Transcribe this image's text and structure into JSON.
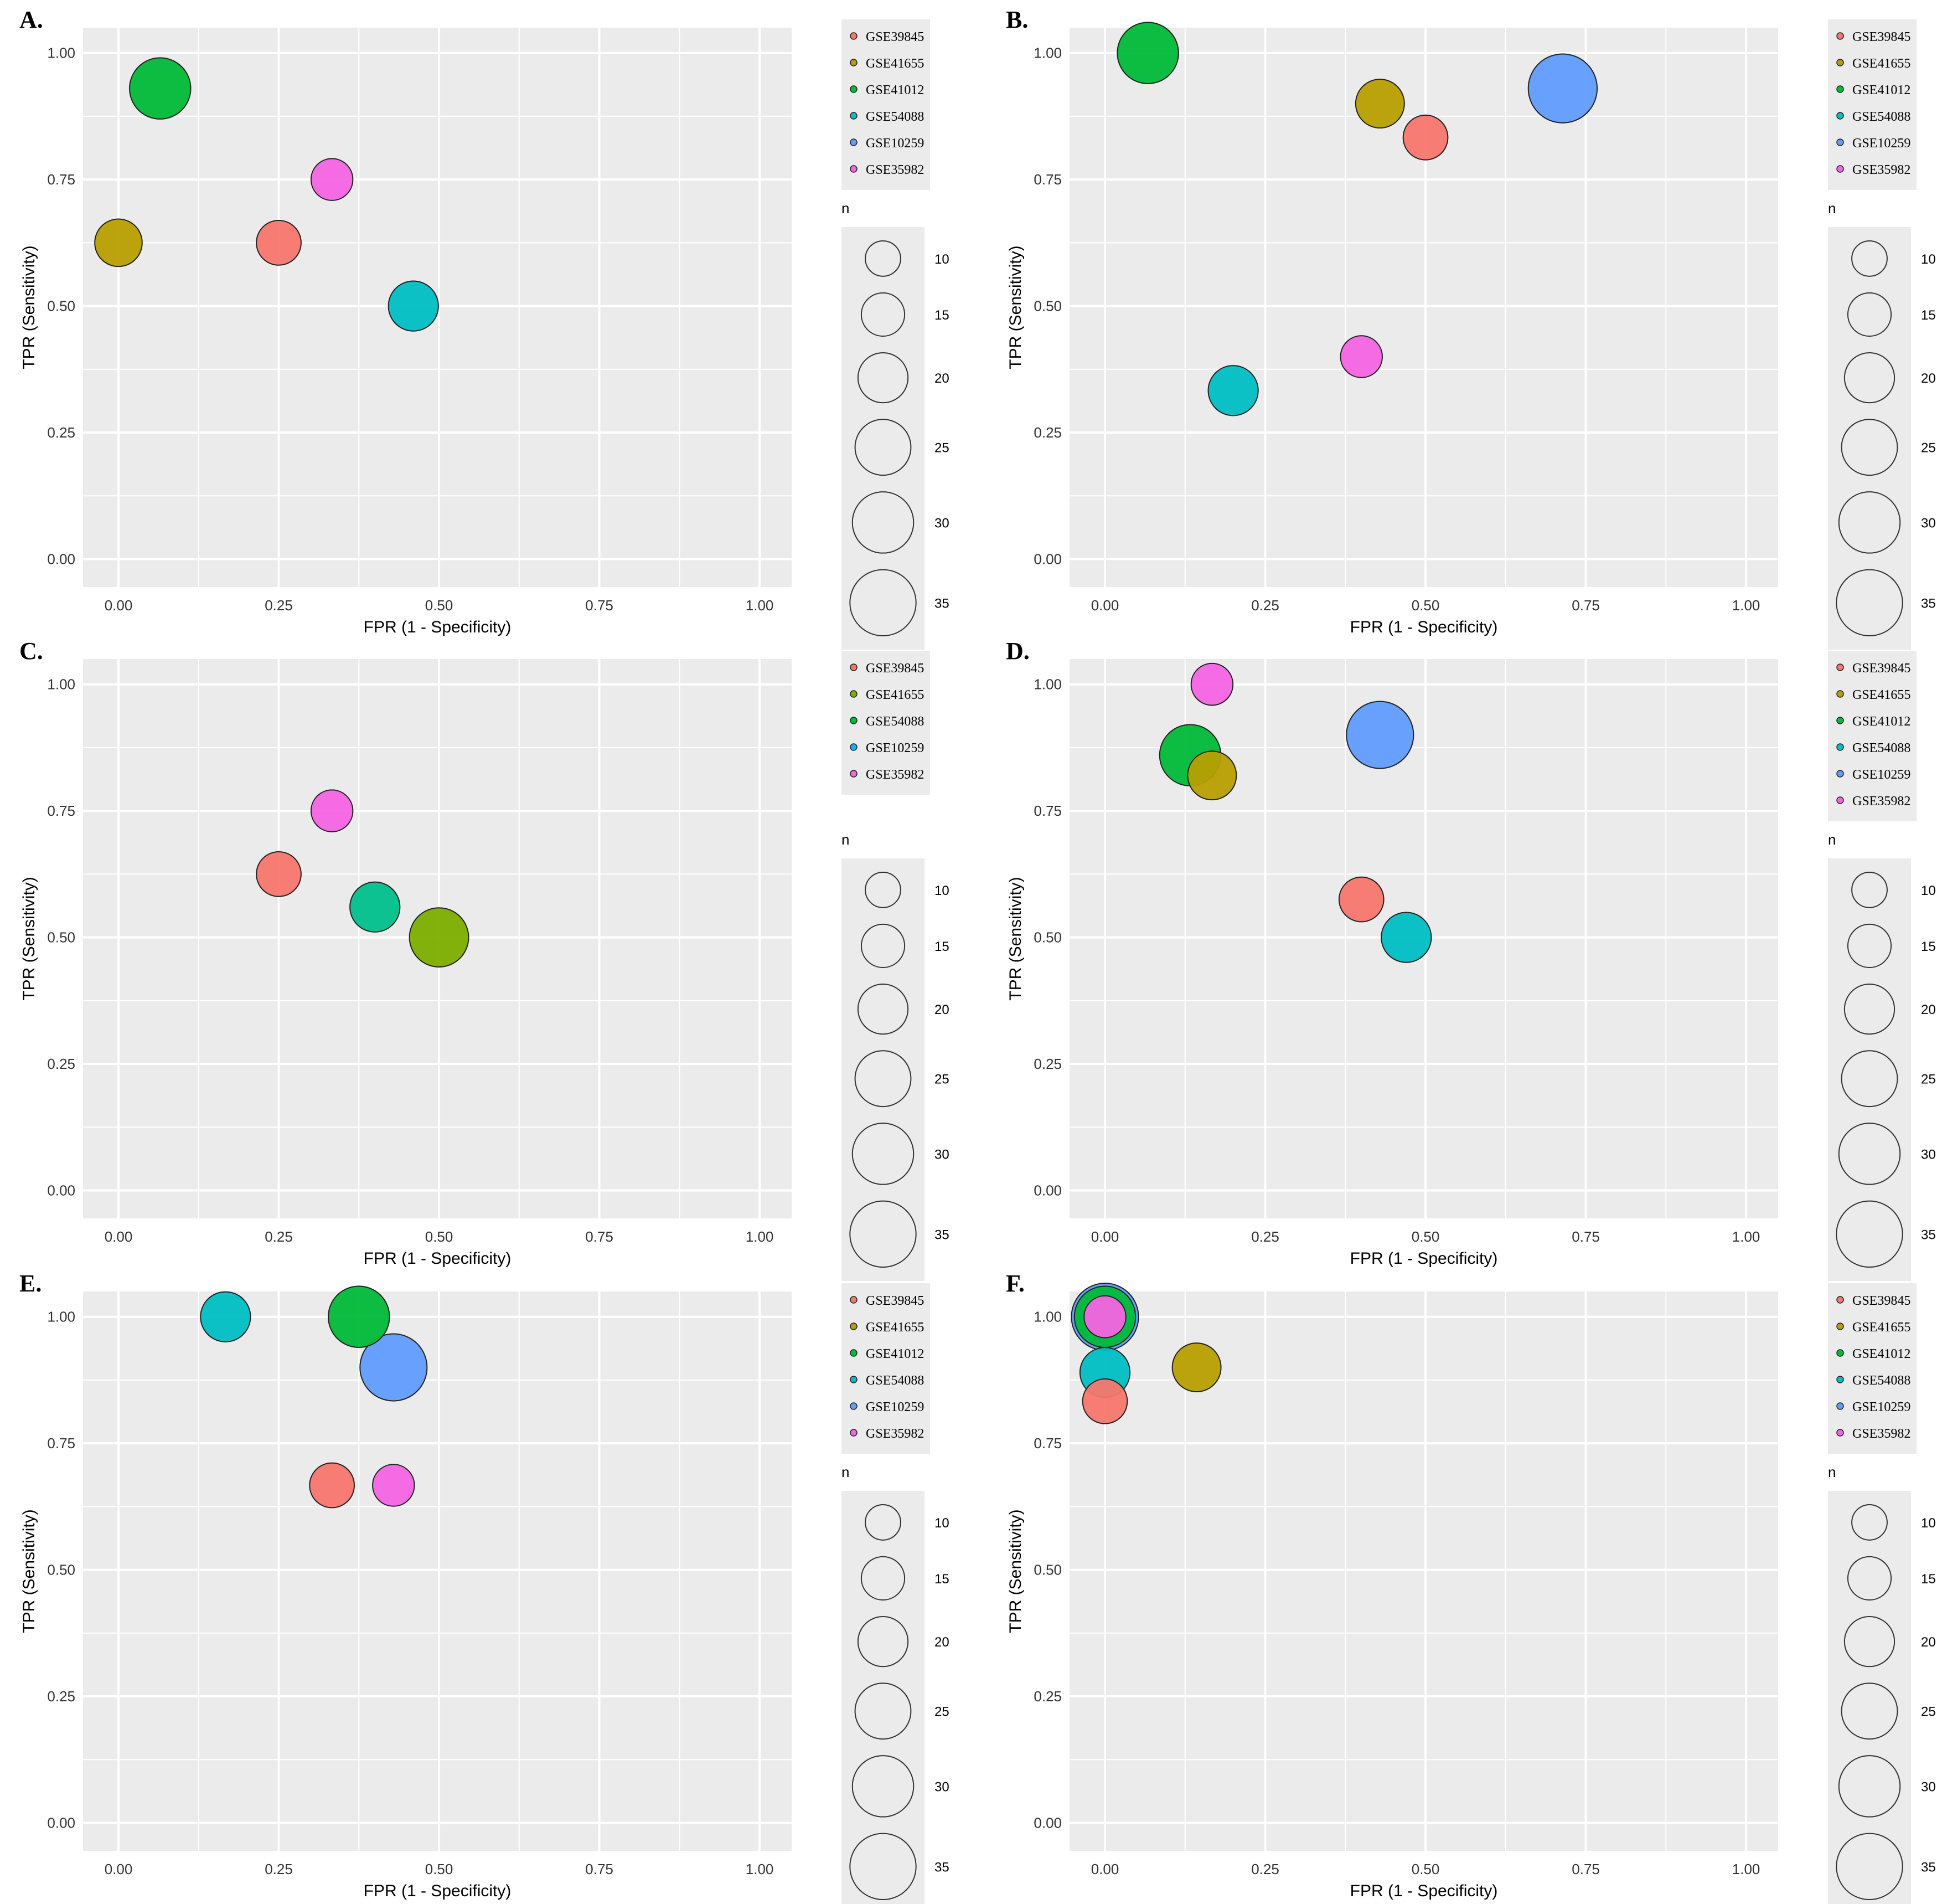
{
  "colors": {
    "GSE39845": "#F8766D",
    "GSE41655": "#B79F00",
    "GSE41012": "#00BA38",
    "GSE54088": "#00BFC4",
    "GSE10259": "#619CFF",
    "GSE35982": "#F564E3",
    "GSE54088_C": "#00C08B",
    "GSE10259_C": "#00B4F0",
    "GSE41655_C": "#7CAE00",
    "panel_bg": "#EBEBEB",
    "grid": "#FFFFFF",
    "text": "#333333"
  },
  "size_legend": {
    "title": "n",
    "breaks": [
      10,
      15,
      20,
      25,
      30,
      35
    ]
  },
  "chart_data": [
    {
      "panel": "A.",
      "type": "scatter",
      "xlabel": "FPR (1 - Specificity)",
      "ylabel": "TPR (Sensitivity)",
      "xlim": [
        0,
        1
      ],
      "ylim": [
        0,
        1
      ],
      "ticks": [
        "0.00",
        "0.25",
        "0.50",
        "0.75",
        "1.00"
      ],
      "legend": [
        "GSE39845",
        "GSE41655",
        "GSE41012",
        "GSE54088",
        "GSE10259",
        "GSE35982"
      ],
      "points": [
        {
          "series": "GSE39845",
          "fpr": 0.25,
          "tpr": 0.625,
          "n": 16
        },
        {
          "series": "GSE41655",
          "fpr": 0.0,
          "tpr": 0.625,
          "n": 18
        },
        {
          "series": "GSE41012",
          "fpr": 0.065,
          "tpr": 0.93,
          "n": 30
        },
        {
          "series": "GSE54088",
          "fpr": 0.46,
          "tpr": 0.5,
          "n": 20
        },
        {
          "series": "GSE35982",
          "fpr": 0.333,
          "tpr": 0.75,
          "n": 14
        }
      ]
    },
    {
      "panel": "B.",
      "type": "scatter",
      "xlabel": "FPR (1 - Specificity)",
      "ylabel": "TPR (Sensitivity)",
      "xlim": [
        0,
        1
      ],
      "ylim": [
        0,
        1
      ],
      "ticks": [
        "0.00",
        "0.25",
        "0.50",
        "0.75",
        "1.00"
      ],
      "legend": [
        "GSE39845",
        "GSE41655",
        "GSE41012",
        "GSE54088",
        "GSE10259",
        "GSE35982"
      ],
      "points": [
        {
          "series": "GSE39845",
          "fpr": 0.5,
          "tpr": 0.833,
          "n": 16
        },
        {
          "series": "GSE41655",
          "fpr": 0.429,
          "tpr": 0.9,
          "n": 19
        },
        {
          "series": "GSE41012",
          "fpr": 0.067,
          "tpr": 1.0,
          "n": 30
        },
        {
          "series": "GSE54088",
          "fpr": 0.2,
          "tpr": 0.333,
          "n": 20
        },
        {
          "series": "GSE10259",
          "fpr": 0.714,
          "tpr": 0.93,
          "n": 38
        },
        {
          "series": "GSE35982",
          "fpr": 0.4,
          "tpr": 0.4,
          "n": 14
        }
      ]
    },
    {
      "panel": "C.",
      "type": "scatter",
      "xlabel": "FPR (1 - Specificity)",
      "ylabel": "TPR (Sensitivity)",
      "xlim": [
        0,
        1
      ],
      "ylim": [
        0,
        1
      ],
      "ticks": [
        "0.00",
        "0.25",
        "0.50",
        "0.75",
        "1.00"
      ],
      "legend": [
        "GSE39845",
        "GSE41655",
        "GSE54088",
        "GSE10259",
        "GSE35982"
      ],
      "points": [
        {
          "series": "GSE39845",
          "fpr": 0.25,
          "tpr": 0.625,
          "n": 16
        },
        {
          "series": "GSE54088_C",
          "fpr": 0.4,
          "tpr": 0.56,
          "n": 20
        },
        {
          "series": "GSE41655_C",
          "fpr": 0.5,
          "tpr": 0.5,
          "n": 28
        },
        {
          "series": "GSE35982",
          "fpr": 0.333,
          "tpr": 0.75,
          "n": 14
        }
      ]
    },
    {
      "panel": "D.",
      "type": "scatter",
      "xlabel": "FPR (1 - Specificity)",
      "ylabel": "TPR (Sensitivity)",
      "xlim": [
        0,
        1
      ],
      "ylim": [
        0,
        1
      ],
      "ticks": [
        "0.00",
        "0.25",
        "0.50",
        "0.75",
        "1.00"
      ],
      "legend": [
        "GSE39845",
        "GSE41655",
        "GSE41012",
        "GSE54088",
        "GSE10259",
        "GSE35982"
      ],
      "points": [
        {
          "series": "GSE41012",
          "fpr": 0.133,
          "tpr": 0.86,
          "n": 30
        },
        {
          "series": "GSE41655",
          "fpr": 0.167,
          "tpr": 0.82,
          "n": 19
        },
        {
          "series": "GSE10259",
          "fpr": 0.429,
          "tpr": 0.9,
          "n": 36
        },
        {
          "series": "GSE39845",
          "fpr": 0.4,
          "tpr": 0.575,
          "n": 16
        },
        {
          "series": "GSE54088",
          "fpr": 0.47,
          "tpr": 0.5,
          "n": 20
        },
        {
          "series": "GSE35982",
          "fpr": 0.167,
          "tpr": 1.0,
          "n": 14
        }
      ]
    },
    {
      "panel": "E.",
      "type": "scatter",
      "xlabel": "FPR (1 - Specificity)",
      "ylabel": "TPR (Sensitivity)",
      "xlim": [
        0,
        1
      ],
      "ylim": [
        0,
        1
      ],
      "ticks": [
        "0.00",
        "0.25",
        "0.50",
        "0.75",
        "1.00"
      ],
      "legend": [
        "GSE39845",
        "GSE41655",
        "GSE41012",
        "GSE54088",
        "GSE10259",
        "GSE35982"
      ],
      "points": [
        {
          "series": "GSE54088",
          "fpr": 0.167,
          "tpr": 1.0,
          "n": 20
        },
        {
          "series": "GSE41012",
          "fpr": 0.375,
          "tpr": 1.0,
          "n": 30
        },
        {
          "series": "GSE10259",
          "fpr": 0.429,
          "tpr": 0.9,
          "n": 36
        },
        {
          "series": "GSE39845",
          "fpr": 0.333,
          "tpr": 0.667,
          "n": 16
        },
        {
          "series": "GSE35982",
          "fpr": 0.429,
          "tpr": 0.667,
          "n": 14
        }
      ]
    },
    {
      "panel": "F.",
      "type": "scatter",
      "xlabel": "FPR (1 - Specificity)",
      "ylabel": "TPR (Sensitivity)",
      "xlim": [
        0,
        1
      ],
      "ylim": [
        0,
        1
      ],
      "ticks": [
        "0.00",
        "0.25",
        "0.50",
        "0.75",
        "1.00"
      ],
      "legend": [
        "GSE39845",
        "GSE41655",
        "GSE41012",
        "GSE54088",
        "GSE10259",
        "GSE35982"
      ],
      "points": [
        {
          "series": "GSE10259",
          "fpr": 0.0,
          "tpr": 1.0,
          "n": 36
        },
        {
          "series": "GSE41012",
          "fpr": 0.0,
          "tpr": 1.0,
          "n": 30
        },
        {
          "series": "GSE54088",
          "fpr": 0.0,
          "tpr": 0.89,
          "n": 20
        },
        {
          "series": "GSE39845",
          "fpr": 0.0,
          "tpr": 0.833,
          "n": 16
        },
        {
          "series": "GSE41655",
          "fpr": 0.143,
          "tpr": 0.9,
          "n": 19
        },
        {
          "series": "GSE35982",
          "fpr": 0.0,
          "tpr": 1.0,
          "n": 14
        }
      ]
    }
  ]
}
